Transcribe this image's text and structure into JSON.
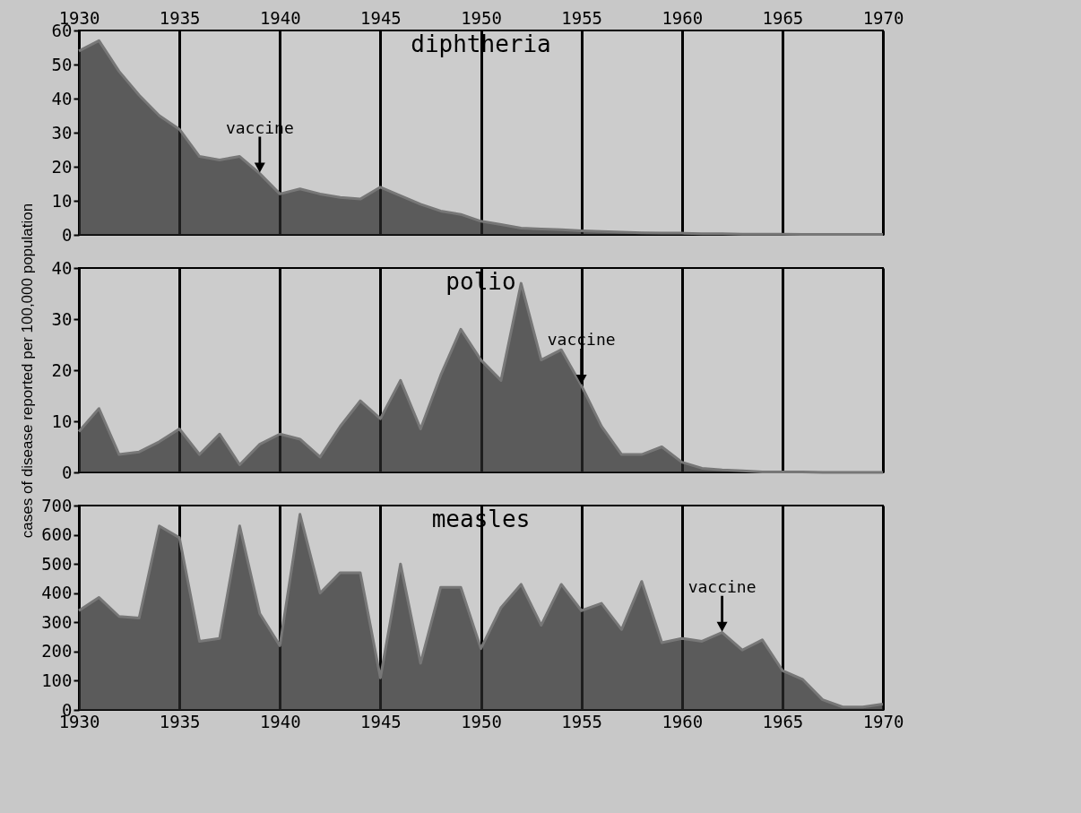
{
  "chart_data": [
    {
      "type": "area",
      "title": "diphtheria",
      "x": [
        1930,
        1931,
        1932,
        1933,
        1934,
        1935,
        1936,
        1937,
        1938,
        1939,
        1940,
        1941,
        1942,
        1943,
        1944,
        1945,
        1946,
        1947,
        1948,
        1949,
        1950,
        1951,
        1952,
        1953,
        1954,
        1955,
        1956,
        1957,
        1958,
        1959,
        1960,
        1961,
        1962,
        1963,
        1964,
        1965,
        1966,
        1967,
        1968,
        1969,
        1970
      ],
      "values": [
        54,
        57,
        48,
        41,
        35,
        31,
        23,
        22,
        23,
        18,
        12,
        13.5,
        12,
        11,
        10.5,
        14,
        11.5,
        9,
        7,
        6,
        4,
        3,
        2,
        1.7,
        1.5,
        1.2,
        1,
        0.8,
        0.6,
        0.5,
        0.5,
        0.3,
        0.3,
        0.2,
        0.2,
        0.2,
        0.1,
        0.1,
        0.1,
        0.1,
        0.1
      ],
      "color": "#2b2b2b",
      "xlim": [
        1930,
        1970
      ],
      "xticks": [
        1930,
        1935,
        1940,
        1945,
        1950,
        1955,
        1960,
        1965,
        1970
      ],
      "ylim": [
        0,
        60
      ],
      "yticks": [
        0,
        10,
        20,
        30,
        40,
        50,
        60
      ],
      "grid": "x",
      "annotations": [
        {
          "text": "vaccine",
          "x": 1939,
          "y": 18
        }
      ]
    },
    {
      "type": "area",
      "title": "polio",
      "ylabel": "cases of disease reported per 100,000 population",
      "x": [
        1930,
        1931,
        1932,
        1933,
        1934,
        1935,
        1936,
        1937,
        1938,
        1939,
        1940,
        1941,
        1942,
        1943,
        1944,
        1945,
        1946,
        1947,
        1948,
        1949,
        1950,
        1951,
        1952,
        1953,
        1954,
        1955,
        1956,
        1957,
        1958,
        1959,
        1960,
        1961,
        1962,
        1963,
        1964,
        1965,
        1966,
        1967,
        1968,
        1969,
        1970
      ],
      "values": [
        8,
        12.5,
        3.5,
        4,
        6,
        8.5,
        3.5,
        7.5,
        1.5,
        5.5,
        7.5,
        6.5,
        3,
        9,
        14,
        10.5,
        18,
        8.5,
        19,
        28,
        22,
        18,
        37,
        22,
        24,
        17,
        9,
        3.5,
        3.5,
        5,
        2,
        0.8,
        0.5,
        0.3,
        0.1,
        0.1,
        0.1,
        0,
        0,
        0,
        0
      ],
      "color": "#2b2b2b",
      "xlim": [
        1930,
        1970
      ],
      "xticks": [
        1930,
        1935,
        1940,
        1945,
        1950,
        1955,
        1960,
        1965,
        1970
      ],
      "ylim": [
        0,
        40
      ],
      "yticks": [
        0,
        10,
        20,
        30,
        40
      ],
      "grid": "x",
      "tick_labels": "y",
      "annotations": [
        {
          "text": "vaccine",
          "x": 1955,
          "y": 17
        }
      ]
    },
    {
      "type": "area",
      "title": "measles",
      "x": [
        1930,
        1931,
        1932,
        1933,
        1934,
        1935,
        1936,
        1937,
        1938,
        1939,
        1940,
        1941,
        1942,
        1943,
        1944,
        1945,
        1946,
        1947,
        1948,
        1949,
        1950,
        1951,
        1952,
        1953,
        1954,
        1955,
        1956,
        1957,
        1958,
        1959,
        1960,
        1961,
        1962,
        1963,
        1964,
        1965,
        1966,
        1967,
        1968,
        1969,
        1970
      ],
      "values": [
        340,
        385,
        320,
        315,
        630,
        590,
        235,
        245,
        630,
        330,
        220,
        670,
        400,
        470,
        470,
        110,
        500,
        160,
        420,
        420,
        210,
        350,
        430,
        290,
        430,
        340,
        365,
        275,
        440,
        230,
        245,
        235,
        265,
        205,
        240,
        135,
        105,
        35,
        10,
        10,
        20
      ],
      "color": "#2b2b2b",
      "xlim": [
        1930,
        1970
      ],
      "xticks": [
        1930,
        1935,
        1940,
        1945,
        1950,
        1955,
        1960,
        1965,
        1970
      ],
      "ylim": [
        0,
        700
      ],
      "yticks": [
        0,
        100,
        200,
        300,
        400,
        500,
        600,
        700
      ],
      "grid": "x",
      "annotations": [
        {
          "text": "vaccine",
          "x": 1962,
          "y": 265
        }
      ]
    }
  ]
}
